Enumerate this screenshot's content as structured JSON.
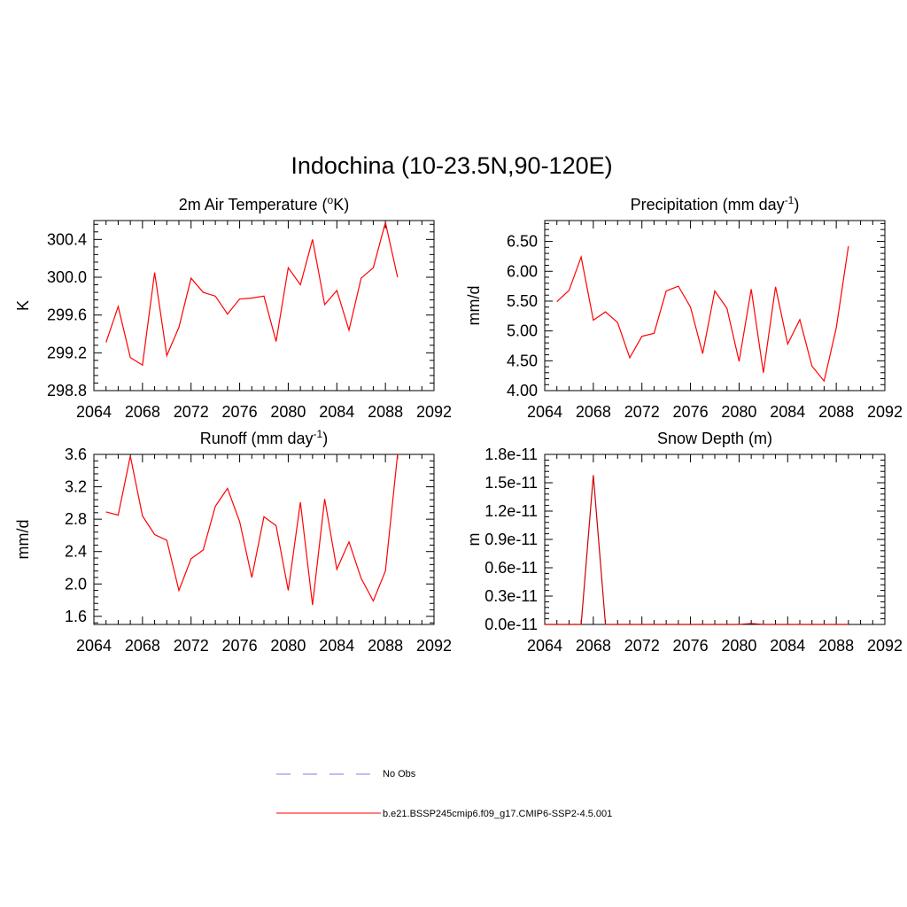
{
  "figure": {
    "title": "Indochina (10-23.5N,90-120E)"
  },
  "legend": {
    "placement": "bottom-center",
    "entries": [
      {
        "label": "No Obs",
        "color": "#9999ee",
        "dash": true
      },
      {
        "label": "b.e21.BSSP245cmip6.f09_g17.CMIP6-SSP2-4.5.001",
        "color": "#ff3333",
        "dash": false
      }
    ]
  },
  "chart_data": [
    {
      "type": "line",
      "title_parts": [
        "2m Air Temperature (",
        "o",
        "K)"
      ],
      "ylabel": "K",
      "xlim": [
        2064,
        2092
      ],
      "ylim": [
        298.8,
        300.6
      ],
      "x_ticks": [
        2064,
        2068,
        2072,
        2076,
        2080,
        2084,
        2088,
        2092
      ],
      "y_ticks": [
        298.8,
        299.2,
        299.6,
        300.0,
        300.4
      ],
      "y_tick_labels": [
        "298.8",
        "299.2",
        "299.6",
        "300.0",
        "300.4"
      ],
      "series": [
        {
          "color": "#ff0000",
          "x": [
            2065,
            2066,
            2067,
            2068,
            2069,
            2070,
            2071,
            2072,
            2073,
            2074,
            2075,
            2076,
            2077,
            2078,
            2079,
            2080,
            2081,
            2082,
            2083,
            2084,
            2085,
            2086,
            2087,
            2088,
            2089
          ],
          "values": [
            299.31,
            299.69,
            299.15,
            299.07,
            300.05,
            299.17,
            299.47,
            299.99,
            299.84,
            299.8,
            299.61,
            299.77,
            299.78,
            299.8,
            299.32,
            300.1,
            299.92,
            300.4,
            299.71,
            299.86,
            299.44,
            299.99,
            300.1,
            300.58,
            300.0
          ]
        }
      ]
    },
    {
      "type": "line",
      "title_parts": [
        "Precipitation (mm day",
        "-1",
        ")"
      ],
      "ylabel": "mm/d",
      "xlim": [
        2064,
        2092
      ],
      "ylim": [
        4.0,
        6.85
      ],
      "x_ticks": [
        2064,
        2068,
        2072,
        2076,
        2080,
        2084,
        2088,
        2092
      ],
      "y_ticks": [
        4.0,
        4.5,
        5.0,
        5.5,
        6.0,
        6.5
      ],
      "y_tick_labels": [
        "4.00",
        "4.50",
        "5.00",
        "5.50",
        "6.00",
        "6.50"
      ],
      "series": [
        {
          "color": "#ff0000",
          "x": [
            2065,
            2066,
            2067,
            2068,
            2069,
            2070,
            2071,
            2072,
            2073,
            2074,
            2075,
            2076,
            2077,
            2078,
            2079,
            2080,
            2081,
            2082,
            2083,
            2084,
            2085,
            2086,
            2087,
            2088,
            2089
          ],
          "values": [
            5.49,
            5.68,
            6.24,
            5.18,
            5.32,
            5.14,
            4.55,
            4.91,
            4.96,
            5.67,
            5.75,
            5.4,
            4.62,
            5.67,
            5.38,
            4.49,
            5.7,
            4.3,
            5.74,
            4.78,
            5.19,
            4.41,
            4.16,
            5.05,
            6.42
          ]
        }
      ]
    },
    {
      "type": "line",
      "title_parts": [
        "Runoff (mm day",
        "-1",
        ")"
      ],
      "ylabel": "mm/d",
      "xlim": [
        2064,
        2092
      ],
      "ylim": [
        1.5,
        3.6
      ],
      "x_ticks": [
        2064,
        2068,
        2072,
        2076,
        2080,
        2084,
        2088,
        2092
      ],
      "y_ticks": [
        1.6,
        2.0,
        2.4,
        2.8,
        3.2,
        3.6
      ],
      "y_tick_labels": [
        "1.6",
        "2.0",
        "2.4",
        "2.8",
        "3.2",
        "3.6"
      ],
      "series": [
        {
          "color": "#ff0000",
          "x": [
            2065,
            2066,
            2067,
            2068,
            2069,
            2070,
            2071,
            2072,
            2073,
            2074,
            2075,
            2076,
            2077,
            2078,
            2079,
            2080,
            2081,
            2082,
            2083,
            2084,
            2085,
            2086,
            2087,
            2088,
            2089
          ],
          "values": [
            2.89,
            2.85,
            3.58,
            2.84,
            2.61,
            2.54,
            1.92,
            2.31,
            2.42,
            2.96,
            3.18,
            2.77,
            2.08,
            2.83,
            2.72,
            1.92,
            3.01,
            1.74,
            3.05,
            2.18,
            2.52,
            2.07,
            1.79,
            2.16,
            3.6
          ]
        }
      ]
    },
    {
      "type": "line",
      "title_parts": [
        "Snow Depth (m)",
        "",
        ""
      ],
      "ylabel": "m",
      "xlim": [
        2064,
        2092
      ],
      "ylim": [
        0,
        1.8e-11
      ],
      "x_ticks": [
        2064,
        2068,
        2072,
        2076,
        2080,
        2084,
        2088,
        2092
      ],
      "y_ticks": [
        0,
        3e-12,
        6e-12,
        9e-12,
        1.2e-11,
        1.5e-11,
        1.8e-11
      ],
      "y_tick_labels": [
        "0.0e-11",
        "0.3e-11",
        "0.6e-11",
        "0.9e-11",
        "1.2e-11",
        "1.5e-11",
        "1.8e-11"
      ],
      "series": [
        {
          "color": "#cc0000",
          "x": [
            2064,
            2065,
            2066,
            2067,
            2068,
            2069,
            2070,
            2071,
            2072,
            2073,
            2074,
            2075,
            2076,
            2077,
            2078,
            2079,
            2080,
            2081,
            2082,
            2083,
            2084,
            2085,
            2086,
            2087,
            2088,
            2089
          ],
          "values": [
            0,
            0,
            0,
            0,
            1.58e-11,
            0,
            0,
            0,
            0,
            0,
            0,
            0,
            0,
            0,
            0,
            0,
            0,
            1e-13,
            0,
            0,
            0,
            0,
            0,
            0,
            0,
            0
          ]
        }
      ]
    }
  ]
}
